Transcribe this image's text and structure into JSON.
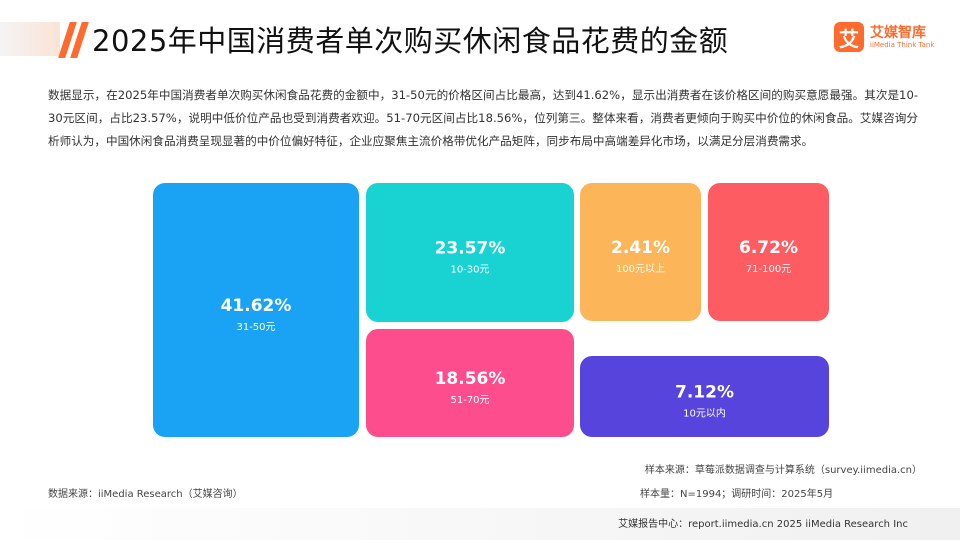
{
  "title": "2025年中国消费者单次购买休闲食品花费的金额",
  "logo": {
    "name": "艾媒智库",
    "sub": "iiMedia Think Tank",
    "mark": "艾"
  },
  "description": "数据显示，在2025年中国消费者单次购买休闲食品花费的金额中，31-50元的价格区间占比最高，达到41.62%，显示出消费者在该价格区间的购买意愿最强。其次是10-30元区间，占比23.57%，说明中低价位产品也受到消费者欢迎。51-70元区间占比18.56%，位列第三。整体来看，消费者更倾向于购买中价位的休闲食品。艾媒咨询分析师认为，中国休闲食品消费呈现显著的中价位偏好特征，企业应聚焦主流价格带优化产品矩阵，同步布局中高端差异化市场，以满足分层消费需求。",
  "chart_data": {
    "type": "treemap",
    "unit": "%",
    "items": [
      {
        "label": "31-50元",
        "value": 41.62,
        "display": "41.62%",
        "color": "#1aa3f5"
      },
      {
        "label": "10-30元",
        "value": 23.57,
        "display": "23.57%",
        "color": "#19d3d3"
      },
      {
        "label": "51-70元",
        "value": 18.56,
        "display": "18.56%",
        "color": "#fd4d8c"
      },
      {
        "label": "100元以上",
        "value": 2.41,
        "display": "2.41%",
        "color": "#fdb55a"
      },
      {
        "label": "71-100元",
        "value": 6.72,
        "display": "6.72%",
        "color": "#fd5c62"
      },
      {
        "label": "10元以内",
        "value": 7.12,
        "display": "7.12%",
        "color": "#5644dc"
      }
    ]
  },
  "source": {
    "sample_source": "样本来源：草莓派数据调查与计算系统（survey.iimedia.cn）",
    "data_source": "数据来源：iiMedia Research（艾媒咨询）",
    "sample_size": "样本量：N=1994；调研时间：2025年5月"
  },
  "footer": "艾媒报告中心：report.iimedia.cn   2025 iiMedia Research Inc"
}
